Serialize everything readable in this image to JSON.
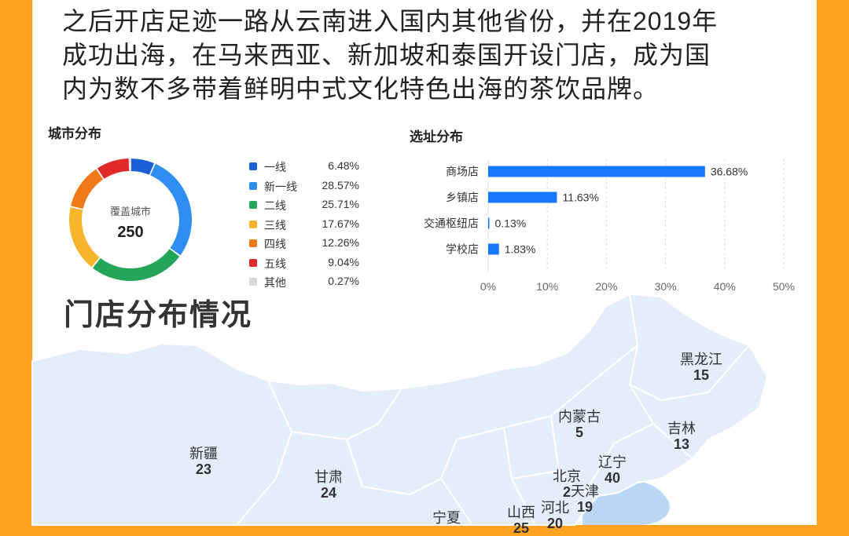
{
  "intro_lines": [
    "之后开店足迹一路从云南进入国内其他省份，并在2019年",
    "成功出海，在马来西亚、新加坡和泰国开设门店，成为国",
    "内为数不多带着鲜明中式文化特色出海的茶饮品牌。"
  ],
  "section_title": "门店分布情况",
  "colors": {
    "background": "#ffa21f",
    "bar": "#1677ff",
    "map_fill": "#e4eefb",
    "map_stroke": "#ffffff",
    "sea": "#b9d6f5"
  },
  "chart_data": [
    {
      "type": "pie",
      "title": "城市分布",
      "center_label": "覆盖城市",
      "center_value": "250",
      "categories": [
        "一线",
        "新一线",
        "二线",
        "三线",
        "四线",
        "五线",
        "其他"
      ],
      "values": [
        6.48,
        28.57,
        25.71,
        17.67,
        12.26,
        9.04,
        0.27
      ],
      "value_labels": [
        "6.48%",
        "28.57%",
        "25.71%",
        "17.67%",
        "12.26%",
        "9.04%",
        "0.27%"
      ],
      "colors": [
        "#1a5fd6",
        "#2f8ff0",
        "#25a55a",
        "#f7b52c",
        "#ef7a1a",
        "#e02a2a",
        "#d8d8d8"
      ],
      "legend_position": "right"
    },
    {
      "type": "bar",
      "orientation": "horizontal",
      "title": "选址分布",
      "categories": [
        "商场店",
        "乡镇店",
        "交通枢纽店",
        "学校店"
      ],
      "values": [
        36.68,
        11.63,
        0.13,
        1.83
      ],
      "value_labels": [
        "36.68%",
        "11.63%",
        "0.13%",
        "1.83%"
      ],
      "xlim": [
        0,
        50
      ],
      "xticks": [
        "0%",
        "10%",
        "20%",
        "30%",
        "40%",
        "50%"
      ],
      "grid": true
    },
    {
      "type": "map",
      "regions": [
        {
          "name": "黑龙江",
          "count": "15"
        },
        {
          "name": "内蒙古",
          "count": "5"
        },
        {
          "name": "吉林",
          "count": "13"
        },
        {
          "name": "新疆",
          "count": "23"
        },
        {
          "name": "辽宁",
          "count": "40"
        },
        {
          "name": "甘肃",
          "count": "24"
        },
        {
          "name": "北京",
          "count": "2"
        },
        {
          "name": "天津",
          "count": "19"
        },
        {
          "name": "河北",
          "count": "20"
        },
        {
          "name": "山西",
          "count": "25"
        },
        {
          "name": "宁夏",
          "count": ""
        }
      ]
    }
  ]
}
